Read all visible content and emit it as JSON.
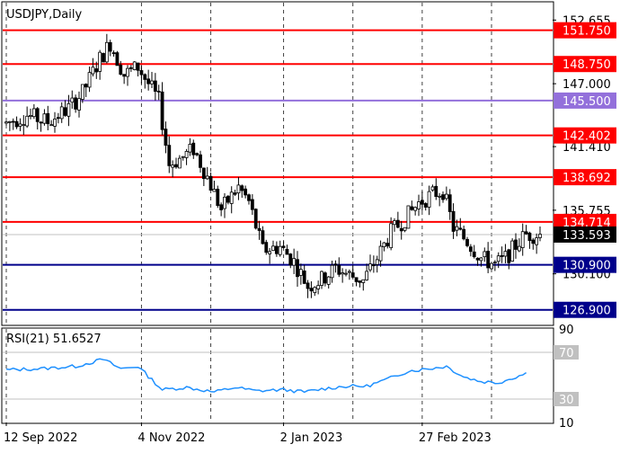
{
  "chart_data": [
    {
      "type": "candlestick",
      "title": "USDJPY,Daily",
      "y_ticks": [
        "152.655",
        "147.000",
        "141.410",
        "135.755",
        "130.100"
      ],
      "ylim": [
        125.6,
        154.2
      ],
      "x_ticks": [
        {
          "label": "12 Sep 2022",
          "bar": 0
        },
        {
          "label": "4 Nov 2022",
          "bar": 39
        },
        {
          "label": "2 Jan 2023",
          "bar": 80
        },
        {
          "label": "27 Feb 2023",
          "bar": 120
        }
      ],
      "bar_count": 155,
      "current_price": "133.593",
      "levels": [
        {
          "value": 151.75,
          "label": "151.750",
          "color": "#ff0000"
        },
        {
          "value": 148.75,
          "label": "148.750",
          "color": "#ff0000"
        },
        {
          "value": 145.5,
          "label": "145.500",
          "color": "#9370db"
        },
        {
          "value": 142.402,
          "label": "142.402",
          "color": "#ff0000"
        },
        {
          "value": 138.692,
          "label": "138.692",
          "color": "#ff0000"
        },
        {
          "value": 134.714,
          "label": "134.714",
          "color": "#ff0000"
        },
        {
          "value": 130.9,
          "label": "130.900",
          "color": "#00008b"
        },
        {
          "value": 126.9,
          "label": "126.900",
          "color": "#00008b"
        }
      ],
      "path_points": [
        {
          "bar": 0,
          "price": 143.5
        },
        {
          "bar": 6,
          "price": 144.2
        },
        {
          "bar": 12,
          "price": 143.6
        },
        {
          "bar": 18,
          "price": 144.8
        },
        {
          "bar": 22,
          "price": 146.2
        },
        {
          "bar": 27,
          "price": 149.2
        },
        {
          "bar": 30,
          "price": 150.6
        },
        {
          "bar": 34,
          "price": 147.8
        },
        {
          "bar": 38,
          "price": 148.5
        },
        {
          "bar": 44,
          "price": 145.5
        },
        {
          "bar": 47,
          "price": 139.8
        },
        {
          "bar": 51,
          "price": 140.5
        },
        {
          "bar": 54,
          "price": 141.2
        },
        {
          "bar": 58,
          "price": 138.7
        },
        {
          "bar": 62,
          "price": 135.8
        },
        {
          "bar": 67,
          "price": 137.8
        },
        {
          "bar": 70,
          "price": 136.5
        },
        {
          "bar": 74,
          "price": 132.2
        },
        {
          "bar": 79,
          "price": 132.5
        },
        {
          "bar": 83,
          "price": 131.2
        },
        {
          "bar": 87,
          "price": 129.0
        },
        {
          "bar": 91,
          "price": 129.6
        },
        {
          "bar": 95,
          "price": 130.6
        },
        {
          "bar": 99,
          "price": 130.0
        },
        {
          "bar": 103,
          "price": 129.5
        },
        {
          "bar": 107,
          "price": 131.5
        },
        {
          "bar": 111,
          "price": 133.8
        },
        {
          "bar": 115,
          "price": 135.0
        },
        {
          "bar": 119,
          "price": 136.4
        },
        {
          "bar": 123,
          "price": 137.2
        },
        {
          "bar": 126,
          "price": 137.5
        },
        {
          "bar": 129,
          "price": 134.2
        },
        {
          "bar": 133,
          "price": 133.0
        },
        {
          "bar": 137,
          "price": 131.5
        },
        {
          "bar": 141,
          "price": 130.9
        },
        {
          "bar": 144,
          "price": 131.5
        },
        {
          "bar": 148,
          "price": 133.0
        },
        {
          "bar": 150,
          "price": 133.6
        }
      ],
      "rsi": {
        "label": "RSI(21) 51.6527",
        "period": 21,
        "value": 51.6527,
        "ylim": [
          10,
          90
        ],
        "ticks": [
          "90",
          "70",
          "30",
          "10"
        ],
        "levels": [
          70,
          30
        ],
        "color": "#1e90ff",
        "path_points": [
          {
            "bar": 0,
            "value": 55
          },
          {
            "bar": 10,
            "value": 56
          },
          {
            "bar": 20,
            "value": 58
          },
          {
            "bar": 28,
            "value": 64
          },
          {
            "bar": 33,
            "value": 56
          },
          {
            "bar": 38,
            "value": 58
          },
          {
            "bar": 45,
            "value": 38
          },
          {
            "bar": 52,
            "value": 40
          },
          {
            "bar": 60,
            "value": 36
          },
          {
            "bar": 66,
            "value": 40
          },
          {
            "bar": 72,
            "value": 37
          },
          {
            "bar": 80,
            "value": 38
          },
          {
            "bar": 86,
            "value": 36
          },
          {
            "bar": 92,
            "value": 39
          },
          {
            "bar": 98,
            "value": 41
          },
          {
            "bar": 104,
            "value": 41
          },
          {
            "bar": 110,
            "value": 47
          },
          {
            "bar": 116,
            "value": 54
          },
          {
            "bar": 122,
            "value": 56
          },
          {
            "bar": 127,
            "value": 58
          },
          {
            "bar": 132,
            "value": 49
          },
          {
            "bar": 137,
            "value": 45
          },
          {
            "bar": 142,
            "value": 44
          },
          {
            "bar": 146,
            "value": 48
          },
          {
            "bar": 150,
            "value": 52
          }
        ]
      }
    }
  ]
}
